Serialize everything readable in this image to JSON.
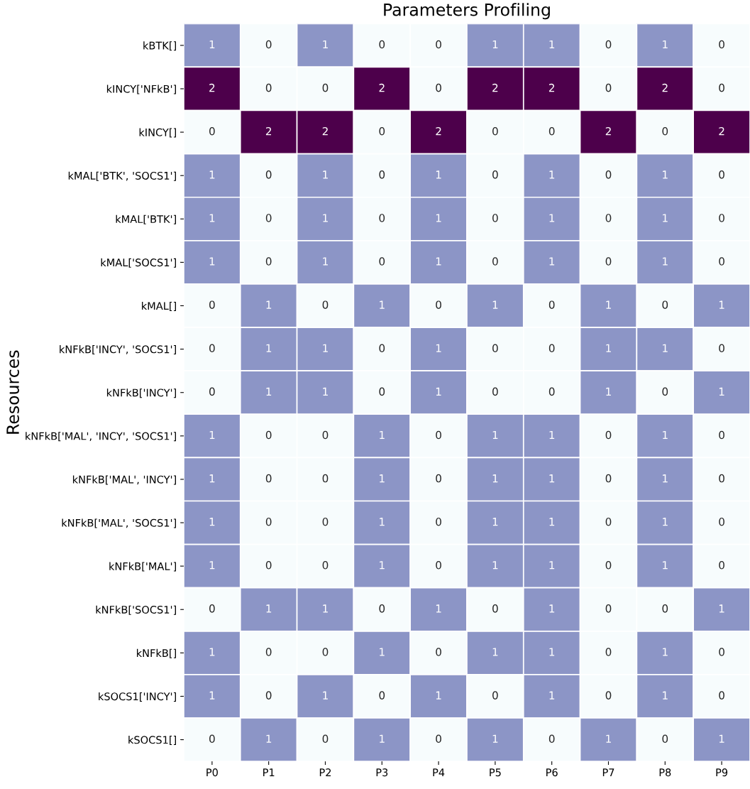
{
  "chart_data": {
    "type": "heatmap",
    "title": "Parameters Profiling",
    "ylabel": "Resources",
    "categories": [
      "P0",
      "P1",
      "P2",
      "P3",
      "P4",
      "P5",
      "P6",
      "P7",
      "P8",
      "P9"
    ],
    "y_categories": [
      "kBTK[]",
      "kINCY['NFkB']",
      "kINCY[]",
      "kMAL['BTK', 'SOCS1']",
      "kMAL['BTK']",
      "kMAL['SOCS1']",
      "kMAL[]",
      "kNFkB['INCY', 'SOCS1']",
      "kNFkB['INCY']",
      "kNFkB['MAL', 'INCY', 'SOCS1']",
      "kNFkB['MAL', 'INCY']",
      "kNFkB['MAL', 'SOCS1']",
      "kNFkB['MAL']",
      "kNFkB['SOCS1']",
      "kNFkB[]",
      "kSOCS1['INCY']",
      "kSOCS1[]"
    ],
    "cells": [
      [
        1,
        0,
        1,
        0,
        0,
        1,
        1,
        0,
        1,
        0
      ],
      [
        2,
        0,
        0,
        2,
        0,
        2,
        2,
        0,
        2,
        0
      ],
      [
        0,
        2,
        2,
        0,
        2,
        0,
        0,
        2,
        0,
        2
      ],
      [
        1,
        0,
        1,
        0,
        1,
        0,
        1,
        0,
        1,
        0
      ],
      [
        1,
        0,
        1,
        0,
        1,
        0,
        1,
        0,
        1,
        0
      ],
      [
        1,
        0,
        1,
        0,
        1,
        0,
        1,
        0,
        1,
        0
      ],
      [
        0,
        1,
        0,
        1,
        0,
        1,
        0,
        1,
        0,
        1
      ],
      [
        0,
        1,
        1,
        0,
        1,
        0,
        0,
        1,
        1,
        0
      ],
      [
        0,
        1,
        1,
        0,
        1,
        0,
        0,
        1,
        0,
        1
      ],
      [
        1,
        0,
        0,
        1,
        0,
        1,
        1,
        0,
        1,
        0
      ],
      [
        1,
        0,
        0,
        1,
        0,
        1,
        1,
        0,
        1,
        0
      ],
      [
        1,
        0,
        0,
        1,
        0,
        1,
        1,
        0,
        1,
        0
      ],
      [
        1,
        0,
        0,
        1,
        0,
        1,
        1,
        0,
        1,
        0
      ],
      [
        0,
        1,
        1,
        0,
        1,
        0,
        1,
        0,
        0,
        1
      ],
      [
        1,
        0,
        0,
        1,
        0,
        1,
        1,
        0,
        1,
        0
      ],
      [
        1,
        0,
        1,
        0,
        1,
        0,
        1,
        0,
        1,
        0
      ],
      [
        0,
        1,
        0,
        1,
        0,
        1,
        0,
        1,
        0,
        1
      ]
    ],
    "data_labels": true
  }
}
